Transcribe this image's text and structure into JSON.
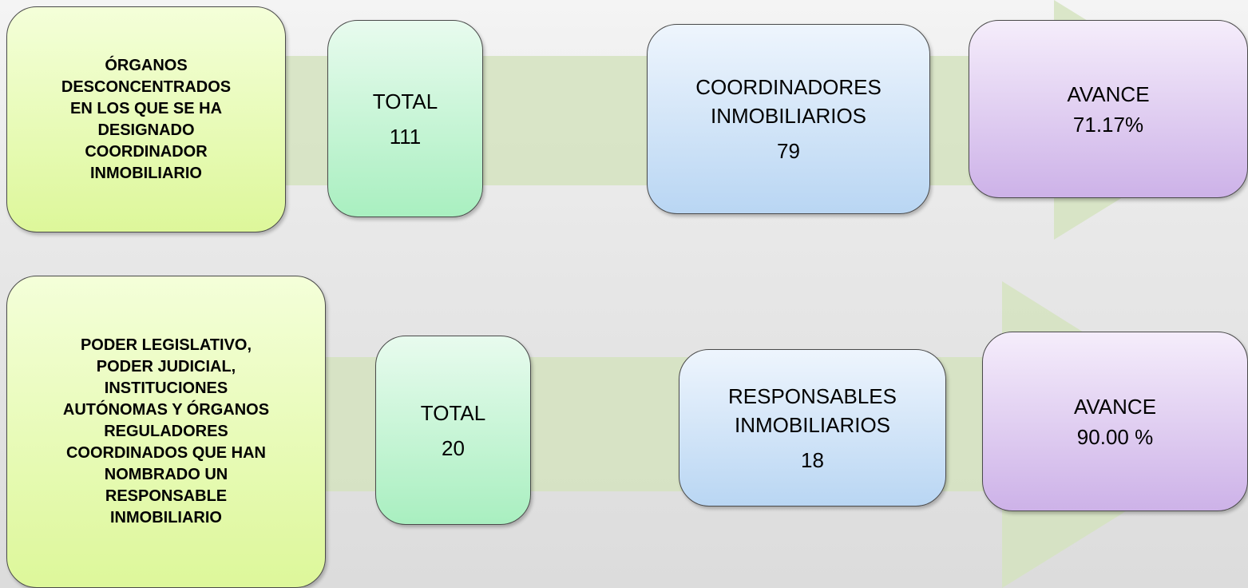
{
  "rows": [
    {
      "description": [
        "ÓRGANOS",
        "DESCONCENTRADOS",
        "EN LOS QUE SE HA",
        "DESIGNADO",
        "COORDINADOR",
        "INMOBILIARIO"
      ],
      "boxes": [
        {
          "lines": [
            "TOTAL",
            "111"
          ]
        },
        {
          "lines": [
            "COORDINADORES",
            "INMOBILIARIOS",
            "79"
          ]
        },
        {
          "lines": [
            "AVANCE",
            "71.17%"
          ]
        }
      ]
    },
    {
      "description": [
        "PODER LEGISLATIVO,",
        "PODER JUDICIAL,",
        "INSTITUCIONES",
        "AUTÓNOMAS Y ÓRGANOS",
        "REGULADORES",
        "COORDINADOS QUE HAN",
        "NOMBRADO UN",
        "RESPONSABLE",
        "INMOBILIARIO"
      ],
      "boxes": [
        {
          "lines": [
            "TOTAL",
            "20"
          ]
        },
        {
          "lines": [
            "RESPONSABLES",
            "INMOBILIARIOS",
            "18"
          ]
        },
        {
          "lines": [
            "AVANCE",
            "90.00 %"
          ]
        }
      ]
    }
  ]
}
